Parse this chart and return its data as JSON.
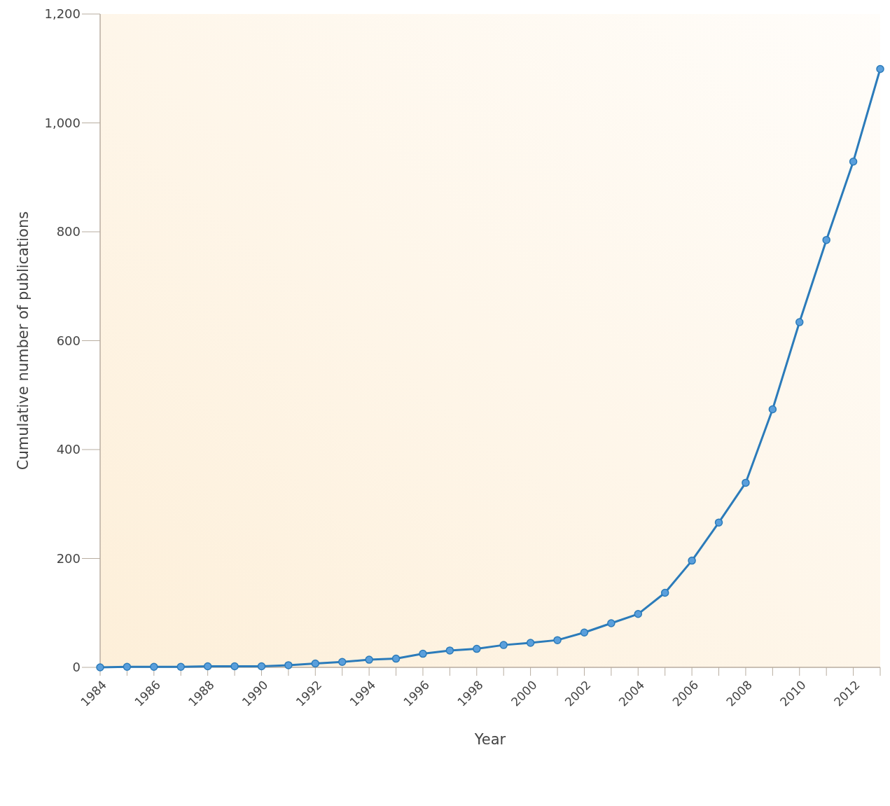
{
  "chart_data": {
    "type": "line",
    "xlabel": "Year",
    "ylabel": "Cumulative number of publications",
    "x": [
      1984,
      1985,
      1986,
      1987,
      1988,
      1989,
      1990,
      1991,
      1992,
      1993,
      1994,
      1995,
      1996,
      1997,
      1998,
      1999,
      2000,
      2001,
      2002,
      2003,
      2004,
      2005,
      2006,
      2007,
      2008,
      2009,
      2010,
      2011,
      2012,
      2013
    ],
    "series": [
      {
        "color": "#2b7bba",
        "values": [
          0,
          1,
          1,
          1,
          2,
          2,
          2,
          4,
          7,
          10,
          14,
          16,
          25,
          31,
          34,
          41,
          45,
          50,
          64,
          81,
          98,
          137,
          196,
          266,
          339,
          474,
          634,
          785,
          929,
          1099
        ]
      }
    ],
    "xlim": [
      1984,
      2013
    ],
    "xticks": [
      1984,
      {
        "value": 1985,
        "label": null
      },
      1986,
      {
        "value": 1987,
        "label": null
      },
      1988,
      {
        "value": 1989,
        "label": null
      },
      1990,
      {
        "value": 1991,
        "label": null
      },
      1992,
      {
        "value": 1993,
        "label": null
      },
      1994,
      {
        "value": 1995,
        "label": null
      },
      1996,
      {
        "value": 1997,
        "label": null
      },
      1998,
      {
        "value": 1999,
        "label": null
      },
      2000,
      {
        "value": 2001,
        "label": null
      },
      2002,
      {
        "value": 2003,
        "label": null
      },
      2004,
      {
        "value": 2005,
        "label": null
      },
      2006,
      {
        "value": 2007,
        "label": null
      },
      2008,
      {
        "value": 2009,
        "label": null
      },
      2010,
      {
        "value": 2011,
        "label": null
      },
      2012,
      {
        "value": 2013,
        "label": null
      }
    ],
    "ylim": [
      0,
      1200
    ],
    "yticks": [
      0,
      200,
      400,
      600,
      800,
      {
        "value": 1000,
        "label": "1,000"
      },
      {
        "value": 1200,
        "label": "1,200"
      }
    ],
    "grid": false,
    "marker": "circle",
    "line_style": "solid"
  }
}
